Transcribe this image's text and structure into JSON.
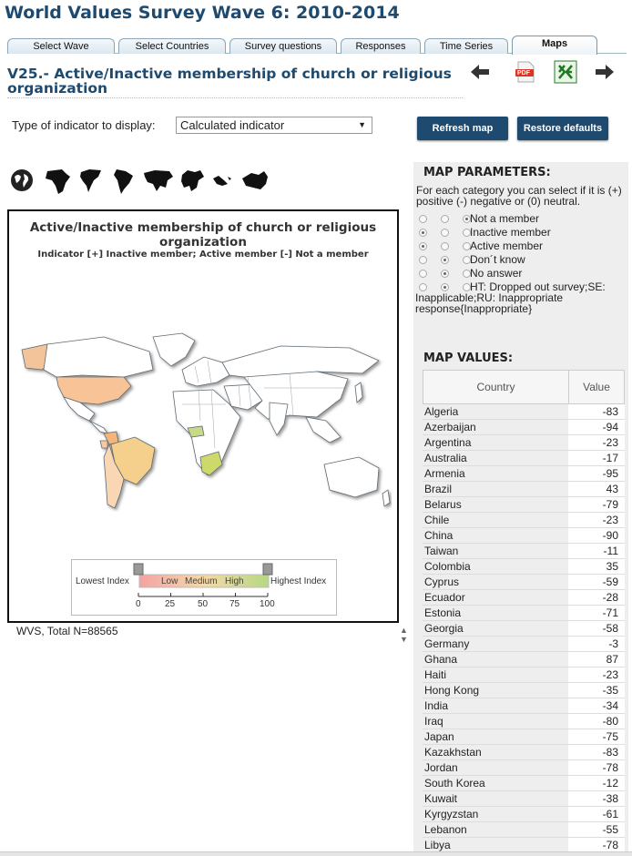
{
  "header": {
    "title": "World Values Survey Wave 6: 2010-2014"
  },
  "tabs": [
    {
      "label": "Select Wave"
    },
    {
      "label": "Select Countries"
    },
    {
      "label": "Survey questions"
    },
    {
      "label": "Responses"
    },
    {
      "label": "Time Series"
    },
    {
      "label": "Maps"
    }
  ],
  "question": {
    "title": "V25.- Active/Inactive membership of church or religious organization"
  },
  "toolbar": {
    "pdf_label": "PDF"
  },
  "indicator": {
    "label": "Type of indicator to display:",
    "selected": "Calculated indicator"
  },
  "buttons": {
    "refresh": "Refresh map",
    "restore": "Restore defaults"
  },
  "map": {
    "title": "Active/Inactive membership of church or religious organization",
    "subtitle": "Indicator [+] Inactive member; Active member [-] Not a member",
    "legend": {
      "lowest": "Lowest Index",
      "highest": "Highest Index",
      "low": "Low",
      "medium": "Medium",
      "high": "High",
      "ticks": [
        "0",
        "25",
        "50",
        "75",
        "100"
      ]
    }
  },
  "footer": {
    "note": "WVS, Total N=88565"
  },
  "params": {
    "heading": "MAP PARAMETERS:",
    "description": "For each category you can select if it is (+) positive (-) negative or (0) neutral.",
    "rows": [
      {
        "label": "Not a member",
        "selected": 2
      },
      {
        "label": "Inactive member",
        "selected": 0
      },
      {
        "label": "Active member",
        "selected": 0
      },
      {
        "label": "Don´t know",
        "selected": 1
      },
      {
        "label": "No answer",
        "selected": 1
      },
      {
        "label": "HT: Dropped out survey;SE: Inapplicable;RU: Inappropriate response{Inappropriate}",
        "selected": 1
      }
    ]
  },
  "values": {
    "heading": "MAP VALUES:",
    "col_country": "Country",
    "col_value": "Value",
    "rows": [
      {
        "country": "Algeria",
        "value": "-83"
      },
      {
        "country": "Azerbaijan",
        "value": "-94"
      },
      {
        "country": "Argentina",
        "value": "-23"
      },
      {
        "country": "Australia",
        "value": "-17"
      },
      {
        "country": "Armenia",
        "value": "-95"
      },
      {
        "country": "Brazil",
        "value": "43"
      },
      {
        "country": "Belarus",
        "value": "-79"
      },
      {
        "country": "Chile",
        "value": "-23"
      },
      {
        "country": "China",
        "value": "-90"
      },
      {
        "country": "Taiwan",
        "value": "-11"
      },
      {
        "country": "Colombia",
        "value": "35"
      },
      {
        "country": "Cyprus",
        "value": "-59"
      },
      {
        "country": "Ecuador",
        "value": "-28"
      },
      {
        "country": "Estonia",
        "value": "-71"
      },
      {
        "country": "Georgia",
        "value": "-58"
      },
      {
        "country": "Germany",
        "value": "-3"
      },
      {
        "country": "Ghana",
        "value": "87"
      },
      {
        "country": "Haiti",
        "value": "-23"
      },
      {
        "country": "Hong Kong",
        "value": "-35"
      },
      {
        "country": "India",
        "value": "-34"
      },
      {
        "country": "Iraq",
        "value": "-80"
      },
      {
        "country": "Japan",
        "value": "-75"
      },
      {
        "country": "Kazakhstan",
        "value": "-83"
      },
      {
        "country": "Jordan",
        "value": "-78"
      },
      {
        "country": "South Korea",
        "value": "-12"
      },
      {
        "country": "Kuwait",
        "value": "-38"
      },
      {
        "country": "Kyrgyzstan",
        "value": "-61"
      },
      {
        "country": "Lebanon",
        "value": "-55"
      },
      {
        "country": "Libya",
        "value": "-78"
      }
    ]
  }
}
